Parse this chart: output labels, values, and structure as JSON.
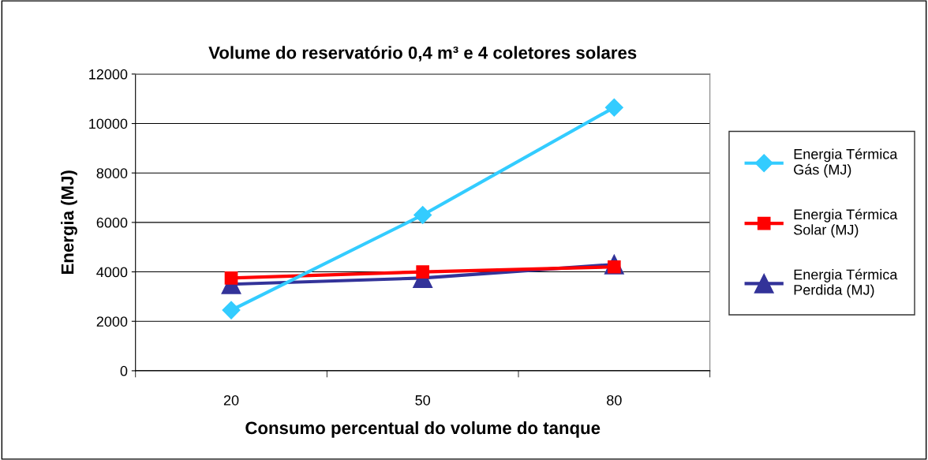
{
  "chart_data": {
    "type": "line",
    "title": "Volume do reservatório 0,4 m³ e 4 coletores solares",
    "xlabel": "Consumo percentual do volume do tanque",
    "ylabel": "Energia (MJ)",
    "categories": [
      "20",
      "50",
      "80"
    ],
    "series": [
      {
        "name": "Energia Térmica\nGás (MJ)",
        "color": "#33ccff",
        "marker": "diamond",
        "values": [
          2450,
          6300,
          10650
        ]
      },
      {
        "name": "Energia Térmica\nSolar (MJ)",
        "color": "#ff0000",
        "marker": "square",
        "values": [
          3750,
          4000,
          4200
        ]
      },
      {
        "name": "Energia Térmica\nPerdida (MJ)",
        "color": "#333399",
        "marker": "triangle",
        "values": [
          3500,
          3750,
          4300
        ]
      }
    ],
    "ylim": [
      0,
      12000
    ],
    "yticks": [
      0,
      2000,
      4000,
      6000,
      8000,
      10000,
      12000
    ],
    "grid": "y",
    "legend": "right",
    "line_style": "solid"
  }
}
